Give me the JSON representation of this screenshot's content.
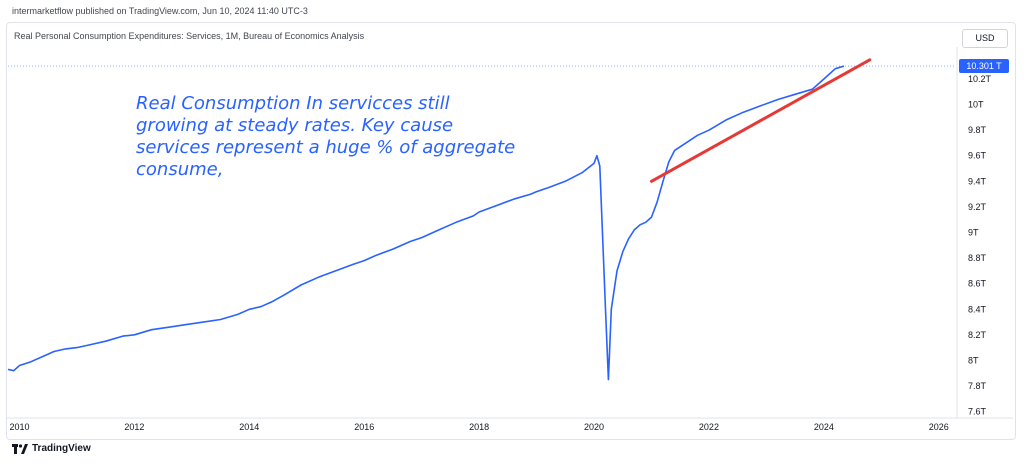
{
  "header": {
    "published": "intermarketflow published on TradingView.com, Jun 10, 2024 11:40 UTC-3",
    "currency": "USD"
  },
  "footer": {
    "brand": "TradingView",
    "logo_icon": "tradingview-logo-icon"
  },
  "annotation": "Real Consumption In servicces still growing at steady rates. Key cause services represent a huge % of aggregate consume,",
  "colors": {
    "series": "#2962ff",
    "trend": "#e53935",
    "last_price": "#2962ff"
  },
  "chart_data": {
    "type": "line",
    "title": "Real Personal Consumption Expenditures: Services, 1M, Bureau of Economics Analysis",
    "xlabel": "",
    "ylabel": "",
    "xlim": [
      2009.8,
      2026.3
    ],
    "ylim": [
      7.55,
      10.45
    ],
    "x_ticks": [
      "2010",
      "2012",
      "2014",
      "2016",
      "2018",
      "2020",
      "2022",
      "2024",
      "2026"
    ],
    "y_ticks": [
      "7.6T",
      "7.8T",
      "8T",
      "8.2T",
      "8.4T",
      "8.6T",
      "8.8T",
      "9T",
      "9.2T",
      "9.4T",
      "9.6T",
      "9.8T",
      "10T",
      "10.2T"
    ],
    "last_value_label": "10.301 T",
    "last_value": 10.301,
    "grid": false,
    "series": [
      {
        "x": [
          2009.8,
          2009.9,
          2010.0,
          2010.2,
          2010.4,
          2010.6,
          2010.8,
          2011.0,
          2011.2,
          2011.5,
          2011.8,
          2012.0,
          2012.3,
          2012.6,
          2012.9,
          2013.2,
          2013.5,
          2013.8,
          2014.0,
          2014.2,
          2014.4,
          2014.6,
          2014.9,
          2015.2,
          2015.5,
          2015.8,
          2016.0,
          2016.2,
          2016.5,
          2016.8,
          2017.0,
          2017.3,
          2017.6,
          2017.9,
          2018.0,
          2018.3,
          2018.6,
          2018.9,
          2019.0,
          2019.2,
          2019.5,
          2019.8,
          2020.0,
          2020.05,
          2020.1,
          2020.2,
          2020.25,
          2020.3,
          2020.4,
          2020.5,
          2020.6,
          2020.7,
          2020.8,
          2020.9,
          2021.0,
          2021.1,
          2021.2,
          2021.3,
          2021.4,
          2021.6,
          2021.8,
          2022.0,
          2022.3,
          2022.6,
          2022.9,
          2023.2,
          2023.5,
          2023.8,
          2024.0,
          2024.2,
          2024.35
        ],
        "values": [
          7.93,
          7.92,
          7.96,
          7.99,
          8.03,
          8.07,
          8.09,
          8.1,
          8.12,
          8.15,
          8.19,
          8.2,
          8.24,
          8.26,
          8.28,
          8.3,
          8.32,
          8.36,
          8.4,
          8.42,
          8.46,
          8.51,
          8.59,
          8.65,
          8.7,
          8.75,
          8.78,
          8.82,
          8.87,
          8.93,
          8.96,
          9.02,
          9.08,
          9.13,
          9.16,
          9.21,
          9.26,
          9.3,
          9.32,
          9.35,
          9.4,
          9.47,
          9.54,
          9.6,
          9.52,
          8.4,
          7.85,
          8.4,
          8.7,
          8.85,
          8.95,
          9.02,
          9.06,
          9.08,
          9.12,
          9.24,
          9.4,
          9.55,
          9.64,
          9.7,
          9.76,
          9.8,
          9.88,
          9.94,
          9.99,
          10.04,
          10.08,
          10.12,
          10.2,
          10.28,
          10.301
        ]
      }
    ],
    "trend_line": {
      "x": [
        2021.0,
        2024.8
      ],
      "values": [
        9.4,
        10.35
      ]
    }
  }
}
